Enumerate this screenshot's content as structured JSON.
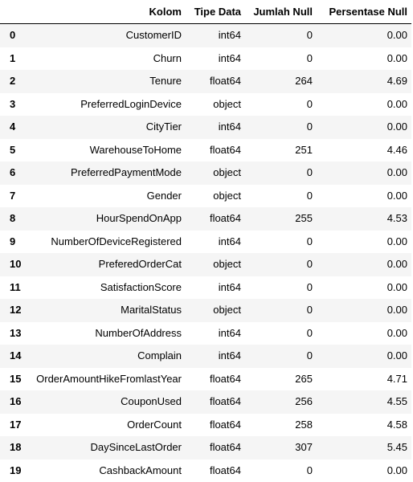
{
  "table": {
    "columns": [
      "",
      "Kolom",
      "Tipe Data",
      "Jumlah Null",
      "Persentase Null"
    ],
    "rows": [
      {
        "index": "0",
        "kolom": "CustomerID",
        "tipe": "int64",
        "jumlah": "0",
        "persen": "0.00"
      },
      {
        "index": "1",
        "kolom": "Churn",
        "tipe": "int64",
        "jumlah": "0",
        "persen": "0.00"
      },
      {
        "index": "2",
        "kolom": "Tenure",
        "tipe": "float64",
        "jumlah": "264",
        "persen": "4.69"
      },
      {
        "index": "3",
        "kolom": "PreferredLoginDevice",
        "tipe": "object",
        "jumlah": "0",
        "persen": "0.00"
      },
      {
        "index": "4",
        "kolom": "CityTier",
        "tipe": "int64",
        "jumlah": "0",
        "persen": "0.00"
      },
      {
        "index": "5",
        "kolom": "WarehouseToHome",
        "tipe": "float64",
        "jumlah": "251",
        "persen": "4.46"
      },
      {
        "index": "6",
        "kolom": "PreferredPaymentMode",
        "tipe": "object",
        "jumlah": "0",
        "persen": "0.00"
      },
      {
        "index": "7",
        "kolom": "Gender",
        "tipe": "object",
        "jumlah": "0",
        "persen": "0.00"
      },
      {
        "index": "8",
        "kolom": "HourSpendOnApp",
        "tipe": "float64",
        "jumlah": "255",
        "persen": "4.53"
      },
      {
        "index": "9",
        "kolom": "NumberOfDeviceRegistered",
        "tipe": "int64",
        "jumlah": "0",
        "persen": "0.00"
      },
      {
        "index": "10",
        "kolom": "PreferedOrderCat",
        "tipe": "object",
        "jumlah": "0",
        "persen": "0.00"
      },
      {
        "index": "11",
        "kolom": "SatisfactionScore",
        "tipe": "int64",
        "jumlah": "0",
        "persen": "0.00"
      },
      {
        "index": "12",
        "kolom": "MaritalStatus",
        "tipe": "object",
        "jumlah": "0",
        "persen": "0.00"
      },
      {
        "index": "13",
        "kolom": "NumberOfAddress",
        "tipe": "int64",
        "jumlah": "0",
        "persen": "0.00"
      },
      {
        "index": "14",
        "kolom": "Complain",
        "tipe": "int64",
        "jumlah": "0",
        "persen": "0.00"
      },
      {
        "index": "15",
        "kolom": "OrderAmountHikeFromlastYear",
        "tipe": "float64",
        "jumlah": "265",
        "persen": "4.71"
      },
      {
        "index": "16",
        "kolom": "CouponUsed",
        "tipe": "float64",
        "jumlah": "256",
        "persen": "4.55"
      },
      {
        "index": "17",
        "kolom": "OrderCount",
        "tipe": "float64",
        "jumlah": "258",
        "persen": "4.58"
      },
      {
        "index": "18",
        "kolom": "DaySinceLastOrder",
        "tipe": "float64",
        "jumlah": "307",
        "persen": "5.45"
      },
      {
        "index": "19",
        "kolom": "CashbackAmount",
        "tipe": "float64",
        "jumlah": "0",
        "persen": "0.00"
      }
    ]
  }
}
